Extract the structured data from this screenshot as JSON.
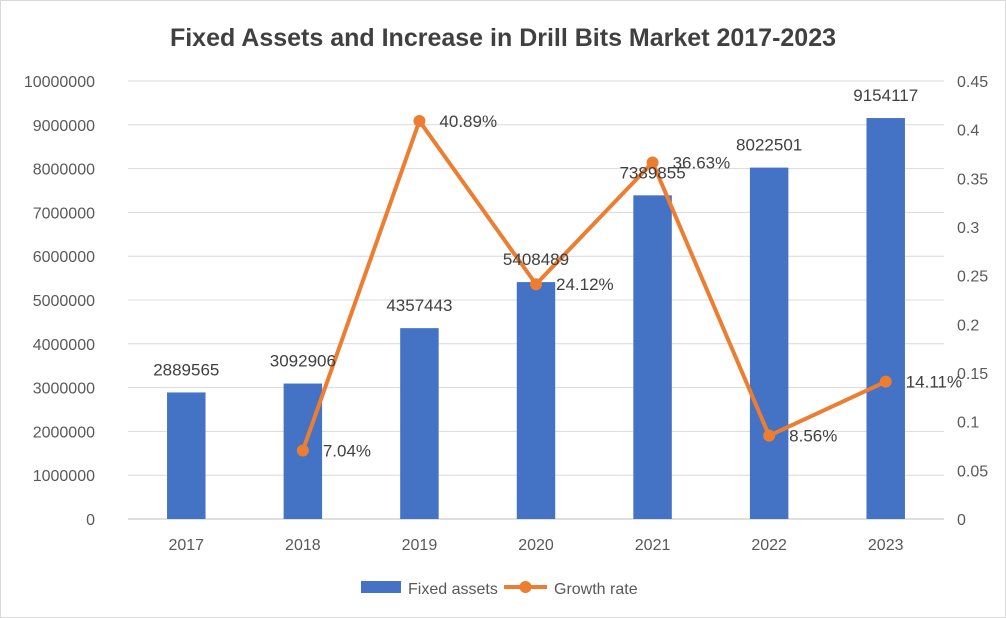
{
  "chart_data": {
    "type": "bar+line",
    "title": "Fixed Assets and Increase in Drill Bits Market 2017-2023",
    "categories": [
      "2017",
      "2018",
      "2019",
      "2020",
      "2021",
      "2022",
      "2023"
    ],
    "series": [
      {
        "name": "Fixed assets",
        "type": "bar",
        "axis": "left",
        "color": "#4472C4",
        "values": [
          2889565,
          3092906,
          4357443,
          5408489,
          7389855,
          8022501,
          9154117
        ],
        "labels": [
          "2889565",
          "3092906",
          "4357443",
          "5408489",
          "7389855",
          "8022501",
          "9154117"
        ]
      },
      {
        "name": "Growth rate",
        "type": "line",
        "axis": "right",
        "color": "#ED7D31",
        "values": [
          null,
          0.0704,
          0.4089,
          0.2412,
          0.3663,
          0.0856,
          0.1411
        ],
        "labels": [
          "",
          "7.04%",
          "40.89%",
          "24.12%",
          "36.63%",
          "8.56%",
          "14.11%"
        ]
      }
    ],
    "y_left": {
      "range": [
        0,
        10000000
      ],
      "ticks": [
        "0",
        "1000000",
        "2000000",
        "3000000",
        "4000000",
        "5000000",
        "6000000",
        "7000000",
        "8000000",
        "9000000",
        "10000000"
      ]
    },
    "y_right": {
      "range": [
        0,
        0.45
      ],
      "ticks": [
        "0",
        "0.05",
        "0.1",
        "0.15",
        "0.2",
        "0.25",
        "0.3",
        "0.35",
        "0.4",
        "0.45"
      ]
    },
    "grid": true,
    "legend": "bottom"
  }
}
